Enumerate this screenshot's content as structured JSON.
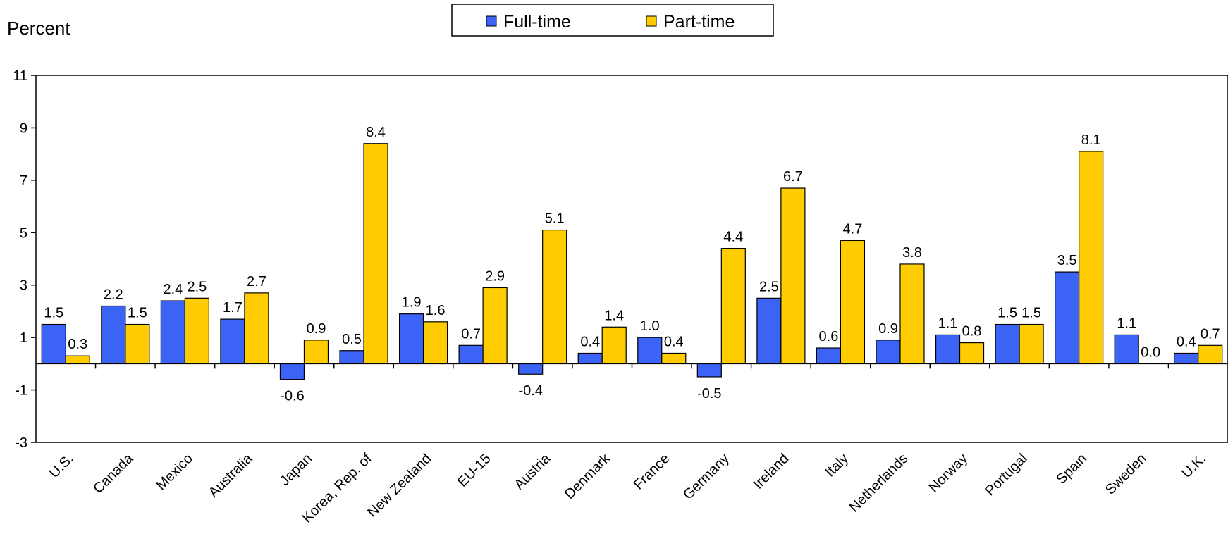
{
  "chart_data": {
    "type": "bar",
    "title": "",
    "ylabel": "Percent",
    "xlabel": "",
    "ylim": [
      -3,
      11
    ],
    "yticks": [
      -3,
      -1,
      1,
      3,
      5,
      7,
      9,
      11
    ],
    "grid": false,
    "legend_position": "top-center",
    "categories": [
      "U.S.",
      "Canada",
      "Mexico",
      "Australia",
      "Japan",
      "Korea, Rep. of",
      "New Zealand",
      "EU-15",
      "Austria",
      "Denmark",
      "France",
      "Germany",
      "Ireland",
      "Italy",
      "Netherlands",
      "Norway",
      "Portugal",
      "Spain",
      "Sweden",
      "U.K."
    ],
    "series": [
      {
        "name": "Full-time",
        "color": "#3b63f5",
        "values": [
          1.5,
          2.2,
          2.4,
          1.7,
          -0.6,
          0.5,
          1.9,
          0.7,
          -0.4,
          0.4,
          1.0,
          -0.5,
          2.5,
          0.6,
          0.9,
          1.1,
          1.5,
          3.5,
          1.1,
          0.4
        ]
      },
      {
        "name": "Part-time",
        "color": "#ffcc00",
        "values": [
          0.3,
          1.5,
          2.5,
          2.7,
          0.9,
          8.4,
          1.6,
          2.9,
          5.1,
          1.4,
          0.4,
          4.4,
          6.7,
          4.7,
          3.8,
          0.8,
          1.5,
          8.1,
          0.0,
          0.7
        ]
      }
    ]
  }
}
